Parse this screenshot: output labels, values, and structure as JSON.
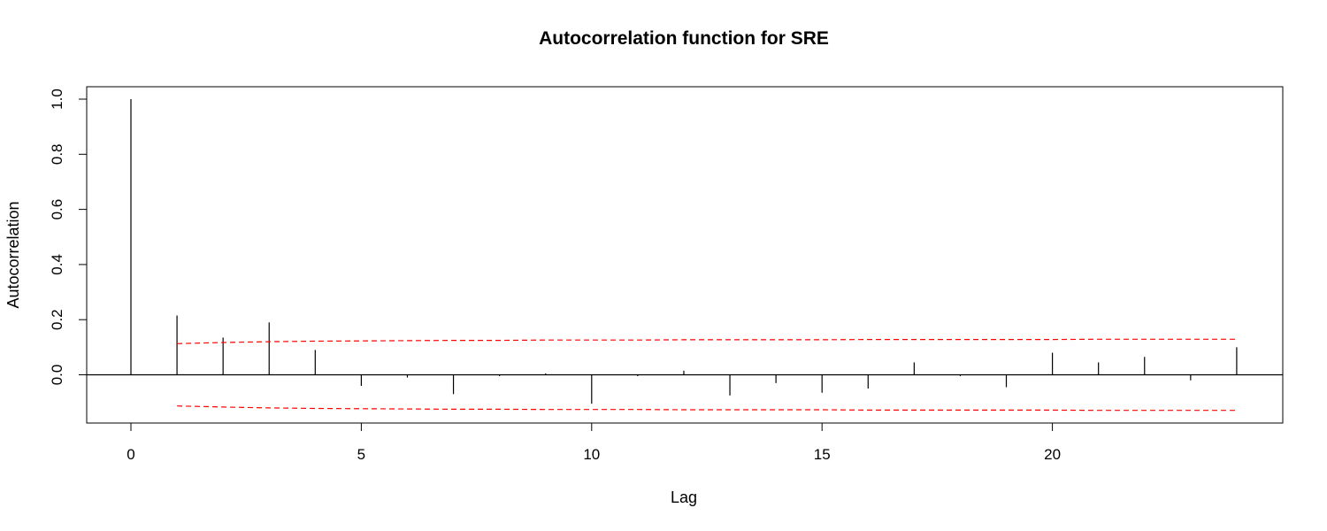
{
  "chart_data": {
    "type": "bar",
    "subtype": "acf-spike",
    "title": "Autocorrelation function for SRE",
    "xlabel": "Lag",
    "ylabel": "Autocorrelation",
    "xlim": [
      -0.96,
      25.0
    ],
    "ylim": [
      -0.175,
      1.045
    ],
    "x_ticks": [
      0,
      5,
      10,
      15,
      20
    ],
    "y_ticks": [
      0.0,
      0.2,
      0.4,
      0.6,
      0.8,
      1.0
    ],
    "y_tick_labels": [
      "0.0",
      "0.2",
      "0.4",
      "0.6",
      "0.8",
      "1.0"
    ],
    "x": [
      0,
      1,
      2,
      3,
      4,
      5,
      6,
      7,
      8,
      9,
      10,
      11,
      12,
      13,
      14,
      15,
      16,
      17,
      18,
      19,
      20,
      21,
      22,
      23,
      24
    ],
    "values": [
      1.0,
      0.215,
      0.135,
      0.19,
      0.09,
      -0.04,
      -0.01,
      -0.07,
      -0.005,
      0.005,
      -0.105,
      -0.005,
      0.015,
      -0.075,
      -0.03,
      -0.065,
      -0.05,
      0.045,
      -0.005,
      -0.045,
      0.08,
      0.045,
      0.065,
      -0.02,
      0.1
    ],
    "confidence_bands": {
      "x": [
        1,
        2,
        3,
        4,
        5,
        6,
        7,
        8,
        9,
        10,
        11,
        12,
        13,
        14,
        15,
        16,
        17,
        18,
        19,
        20,
        21,
        22,
        23,
        24
      ],
      "upper": [
        0.113,
        0.117,
        0.12,
        0.122,
        0.123,
        0.124,
        0.125,
        0.125,
        0.126,
        0.126,
        0.126,
        0.127,
        0.127,
        0.127,
        0.127,
        0.128,
        0.128,
        0.128,
        0.128,
        0.128,
        0.129,
        0.129,
        0.129,
        0.129
      ],
      "lower": [
        -0.113,
        -0.117,
        -0.12,
        -0.122,
        -0.123,
        -0.124,
        -0.125,
        -0.125,
        -0.126,
        -0.126,
        -0.126,
        -0.127,
        -0.127,
        -0.127,
        -0.127,
        -0.128,
        -0.128,
        -0.128,
        -0.128,
        -0.128,
        -0.129,
        -0.129,
        -0.129,
        -0.129
      ],
      "color": "#ff0000",
      "style": "dashed"
    },
    "zero_line": true,
    "grid": false,
    "legend": "none",
    "spike_color": "#000000"
  }
}
